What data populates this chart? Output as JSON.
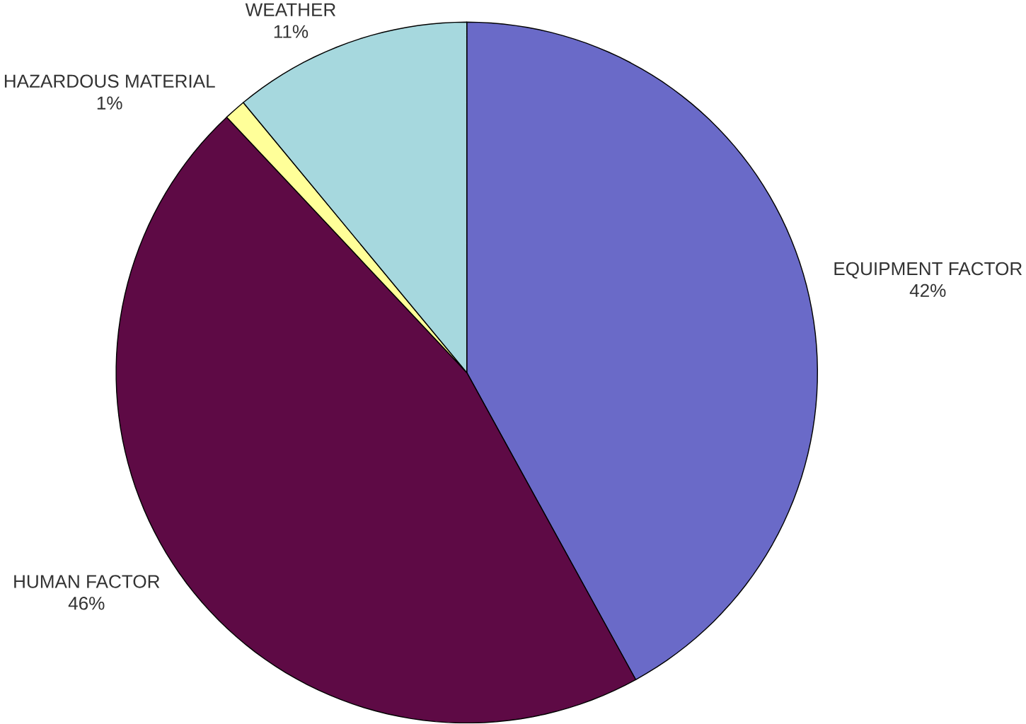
{
  "chart_data": {
    "type": "pie",
    "categories": [
      "EQUIPMENT FACTOR",
      "HUMAN FACTOR",
      "HAZARDOUS MATERIAL",
      "WEATHER"
    ],
    "values": [
      42,
      46,
      1,
      11
    ],
    "value_labels": [
      "42%",
      "46%",
      "1%",
      "11%"
    ],
    "colors": [
      "#6a6ac8",
      "#5e0a45",
      "#ffff99",
      "#a6d8de"
    ],
    "legend": false
  }
}
